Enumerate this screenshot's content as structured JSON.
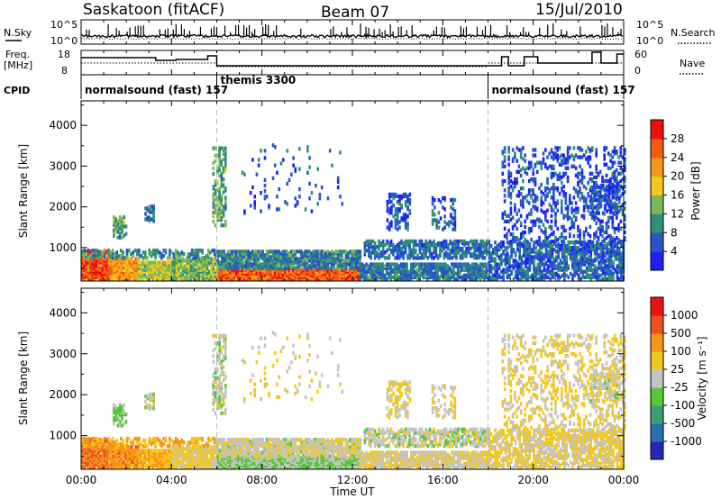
{
  "header": {
    "station": "Saskatoon (fitACF)",
    "beam": "Beam 07",
    "date": "15/Jul/2010"
  },
  "top_panel": {
    "left_label": "N.Sky",
    "right_label": "N.Search",
    "left_ticks": [
      "10^5",
      "10^0"
    ],
    "right_ticks": [
      "10^5",
      "10^0"
    ]
  },
  "freq_panel": {
    "left_label_1": "Freq.",
    "left_label_2": "[MHz]",
    "right_label": "Nave",
    "left_ticks": [
      "18",
      "8"
    ],
    "right_ticks": [
      "60",
      "0"
    ]
  },
  "cpid": {
    "label": "CPID",
    "segments": [
      {
        "name": "normalsound (fast) 157",
        "start_h": 0,
        "end_h": 6
      },
      {
        "name": "themis 3300",
        "start_h": 6,
        "end_h": 18
      },
      {
        "name": "normalsound (fast) 157",
        "start_h": 18,
        "end_h": 24
      }
    ]
  },
  "x_axis": {
    "label": "Time UT",
    "ticks": [
      "00:00",
      "04:00",
      "08:00",
      "12:00",
      "16:00",
      "20:00",
      "00:00"
    ]
  },
  "chart_data": [
    {
      "type": "heatmap",
      "title": "Power",
      "ylabel": "Slant Range [km]",
      "xlabel": "",
      "xlim_hours": [
        0,
        24
      ],
      "ylim_km": [
        180,
        4600
      ],
      "y_ticks": [
        "1000",
        "2000",
        "3000",
        "4000"
      ],
      "colorbar": {
        "label": "Power [dB]",
        "ticks": [
          "4",
          "8",
          "12",
          "16",
          "20",
          "24",
          "28"
        ],
        "colors": [
          "#1f1fff",
          "#2855c8",
          "#2f8f78",
          "#7ab85a",
          "#f2c81c",
          "#f59a16",
          "#f05a14",
          "#ee1010"
        ]
      }
    },
    {
      "type": "heatmap",
      "title": "Velocity",
      "ylabel": "Slant Range [km]",
      "xlabel": "Time UT",
      "xlim_hours": [
        0,
        24
      ],
      "ylim_km": [
        180,
        4600
      ],
      "y_ticks": [
        "1000",
        "2000",
        "3000",
        "4000"
      ],
      "colorbar": {
        "label": "Velocity [m s⁻¹]",
        "ticks": [
          "1000",
          "500",
          "100",
          "25",
          "-25",
          "-100",
          "-500",
          "-1000"
        ],
        "colors": [
          "#2828b8",
          "#2b6fb0",
          "#3aa070",
          "#56c83a",
          "#c4c4c4",
          "#f2c81c",
          "#f5961a",
          "#f05020",
          "#e81414"
        ]
      }
    }
  ]
}
